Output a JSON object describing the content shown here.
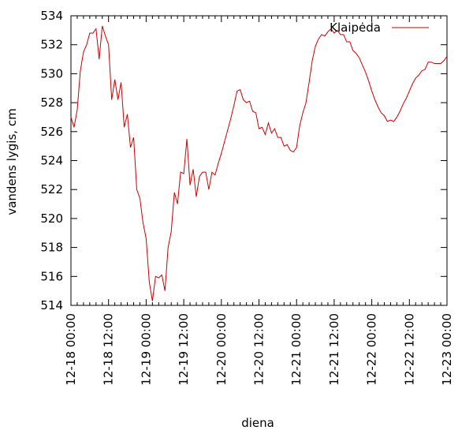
{
  "chart_data": {
    "type": "line",
    "xlabel": "diena",
    "ylabel": "vandens lygis, cm",
    "ylim": [
      514,
      534
    ],
    "xlim": [
      "12-18 00:00",
      "12-23 00:00"
    ],
    "y_ticks": [
      "514",
      "516",
      "518",
      "520",
      "522",
      "524",
      "526",
      "528",
      "530",
      "532",
      "534"
    ],
    "x_ticks": [
      "12-18 00:00",
      "12-18 12:00",
      "12-19 00:00",
      "12-19 12:00",
      "12-20 00:00",
      "12-20 12:00",
      "12-21 00:00",
      "12-21 12:00",
      "12-22 00:00",
      "12-22 12:00",
      "12-23 00:00"
    ],
    "legend_position": "top-right",
    "grid": false,
    "series": [
      {
        "name": "Klaipėda",
        "color": "#cc0000",
        "points": [
          [
            "12-18 00:00",
            527.0
          ],
          [
            "12-18 01:00",
            526.3
          ],
          [
            "12-18 02:00",
            527.5
          ],
          [
            "12-18 03:00",
            530.2
          ],
          [
            "12-18 04:00",
            531.5
          ],
          [
            "12-18 05:00",
            532.0
          ],
          [
            "12-18 06:00",
            532.8
          ],
          [
            "12-18 07:00",
            532.8
          ],
          [
            "12-18 08:00",
            533.1
          ],
          [
            "12-18 09:00",
            531.0
          ],
          [
            "12-18 10:00",
            533.3
          ],
          [
            "12-18 11:00",
            532.6
          ],
          [
            "12-18 12:00",
            532.0
          ],
          [
            "12-18 13:00",
            528.2
          ],
          [
            "12-18 14:00",
            529.6
          ],
          [
            "12-18 15:00",
            528.2
          ],
          [
            "12-18 16:00",
            529.4
          ],
          [
            "12-18 17:00",
            526.3
          ],
          [
            "12-18 18:00",
            527.2
          ],
          [
            "12-18 19:00",
            524.9
          ],
          [
            "12-18 20:00",
            525.6
          ],
          [
            "12-18 21:00",
            522.0
          ],
          [
            "12-18 22:00",
            521.4
          ],
          [
            "12-18 23:00",
            519.7
          ],
          [
            "12-19 00:00",
            518.6
          ],
          [
            "12-19 01:00",
            515.6
          ],
          [
            "12-19 02:00",
            514.3
          ],
          [
            "12-19 03:00",
            516.0
          ],
          [
            "12-19 04:00",
            515.9
          ],
          [
            "12-19 05:00",
            516.1
          ],
          [
            "12-19 06:00",
            515.0
          ],
          [
            "12-19 07:00",
            518.0
          ],
          [
            "12-19 08:00",
            519.1
          ],
          [
            "12-19 09:00",
            521.8
          ],
          [
            "12-19 10:00",
            521.0
          ],
          [
            "12-19 11:00",
            523.2
          ],
          [
            "12-19 12:00",
            523.1
          ],
          [
            "12-19 13:00",
            525.5
          ],
          [
            "12-19 14:00",
            522.3
          ],
          [
            "12-19 15:00",
            523.4
          ],
          [
            "12-19 16:00",
            521.5
          ],
          [
            "12-19 17:00",
            522.9
          ],
          [
            "12-19 18:00",
            523.2
          ],
          [
            "12-19 19:00",
            523.2
          ],
          [
            "12-19 20:00",
            522.0
          ],
          [
            "12-19 21:00",
            523.2
          ],
          [
            "12-19 22:00",
            523.0
          ],
          [
            "12-19 23:00",
            523.8
          ],
          [
            "12-20 00:00",
            524.5
          ],
          [
            "12-20 01:00",
            525.3
          ],
          [
            "12-20 02:00",
            526.1
          ],
          [
            "12-20 03:00",
            526.9
          ],
          [
            "12-20 04:00",
            527.8
          ],
          [
            "12-20 05:00",
            528.8
          ],
          [
            "12-20 06:00",
            528.9
          ],
          [
            "12-20 07:00",
            528.2
          ],
          [
            "12-20 08:00",
            528.0
          ],
          [
            "12-20 09:00",
            528.1
          ],
          [
            "12-20 10:00",
            527.4
          ],
          [
            "12-20 11:00",
            527.3
          ],
          [
            "12-20 12:00",
            526.2
          ],
          [
            "12-20 13:00",
            526.3
          ],
          [
            "12-20 14:00",
            525.8
          ],
          [
            "12-20 15:00",
            526.6
          ],
          [
            "12-20 16:00",
            525.9
          ],
          [
            "12-20 17:00",
            526.2
          ],
          [
            "12-20 18:00",
            525.6
          ],
          [
            "12-20 19:00",
            525.6
          ],
          [
            "12-20 20:00",
            525.0
          ],
          [
            "12-20 21:00",
            525.1
          ],
          [
            "12-20 22:00",
            524.7
          ],
          [
            "12-20 23:00",
            524.6
          ],
          [
            "12-21 00:00",
            524.9
          ],
          [
            "12-21 01:00",
            526.4
          ],
          [
            "12-21 02:00",
            527.3
          ],
          [
            "12-21 03:00",
            528.0
          ],
          [
            "12-21 04:00",
            529.4
          ],
          [
            "12-21 05:00",
            530.9
          ],
          [
            "12-21 06:00",
            531.9
          ],
          [
            "12-21 07:00",
            532.4
          ],
          [
            "12-21 08:00",
            532.7
          ],
          [
            "12-21 09:00",
            532.6
          ],
          [
            "12-21 10:00",
            532.9
          ],
          [
            "12-21 11:00",
            533.1
          ],
          [
            "12-21 12:00",
            532.8
          ],
          [
            "12-21 13:00",
            533.0
          ],
          [
            "12-21 14:00",
            532.7
          ],
          [
            "12-21 15:00",
            532.7
          ],
          [
            "12-21 16:00",
            532.2
          ],
          [
            "12-21 17:00",
            532.2
          ],
          [
            "12-21 18:00",
            531.6
          ],
          [
            "12-21 19:00",
            531.4
          ],
          [
            "12-21 20:00",
            531.1
          ],
          [
            "12-21 21:00",
            530.6
          ],
          [
            "12-21 22:00",
            530.1
          ],
          [
            "12-21 23:00",
            529.5
          ],
          [
            "12-22 00:00",
            528.8
          ],
          [
            "12-22 01:00",
            528.2
          ],
          [
            "12-22 02:00",
            527.7
          ],
          [
            "12-22 03:00",
            527.3
          ],
          [
            "12-22 04:00",
            527.1
          ],
          [
            "12-22 05:00",
            526.7
          ],
          [
            "12-22 06:00",
            526.8
          ],
          [
            "12-22 07:00",
            526.7
          ],
          [
            "12-22 08:00",
            527.0
          ],
          [
            "12-22 09:00",
            527.4
          ],
          [
            "12-22 10:00",
            527.9
          ],
          [
            "12-22 11:00",
            528.3
          ],
          [
            "12-22 12:00",
            528.8
          ],
          [
            "12-22 13:00",
            529.3
          ],
          [
            "12-22 14:00",
            529.7
          ],
          [
            "12-22 15:00",
            529.9
          ],
          [
            "12-22 16:00",
            530.2
          ],
          [
            "12-22 17:00",
            530.3
          ],
          [
            "12-22 18:00",
            530.8
          ],
          [
            "12-22 19:00",
            530.8
          ],
          [
            "12-22 20:00",
            530.7
          ],
          [
            "12-22 21:00",
            530.7
          ],
          [
            "12-22 22:00",
            530.7
          ],
          [
            "12-22 23:00",
            530.9
          ],
          [
            "12-23 00:00",
            531.2
          ]
        ]
      }
    ]
  }
}
